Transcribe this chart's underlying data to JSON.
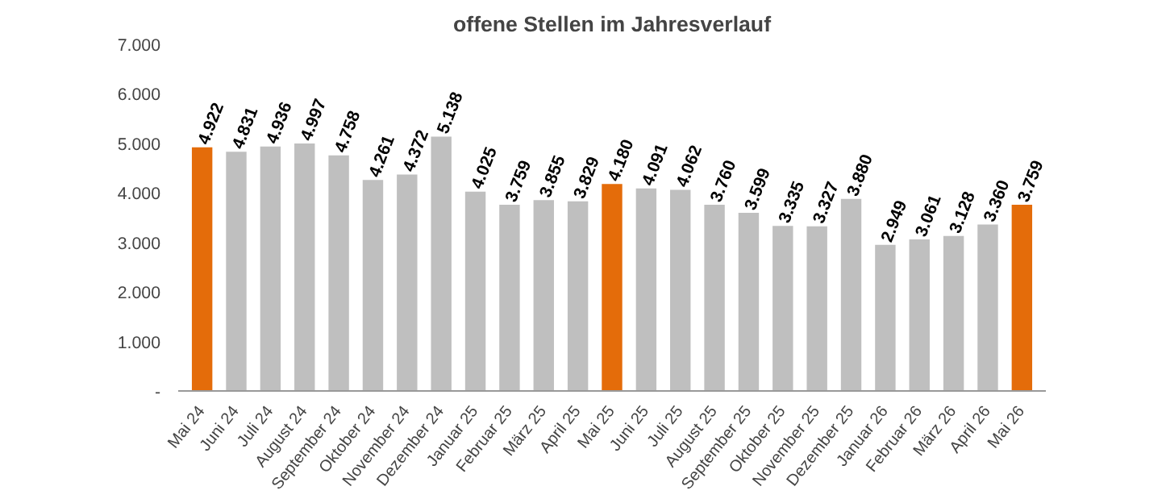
{
  "chart_data": {
    "type": "bar",
    "title": "offene Stellen im Jahresverlauf",
    "categories": [
      "Mai 24",
      "Juni 24",
      "Juli 24",
      "August 24",
      "September 24",
      "Oktober 24",
      "November 24",
      "Dezember 24",
      "Januar 25",
      "Februar 25",
      "März 25",
      "April 25",
      "Mai 25",
      "Juni 25",
      "Juli 25",
      "August 25",
      "September 25",
      "Oktober 25",
      "November 25",
      "Dezember 25",
      "Januar 26",
      "Februar 26",
      "März 26",
      "April 26",
      "Mai 26"
    ],
    "values": [
      4922,
      4831,
      4936,
      4997,
      4758,
      4261,
      4372,
      5138,
      4025,
      3759,
      3855,
      3829,
      4180,
      4091,
      4062,
      3760,
      3599,
      3335,
      3327,
      3880,
      2949,
      3061,
      3128,
      3360,
      3759
    ],
    "value_labels": [
      "4.922",
      "4.831",
      "4.936",
      "4.997",
      "4.758",
      "4.261",
      "4.372",
      "5.138",
      "4.025",
      "3.759",
      "3.855",
      "3.829",
      "4.180",
      "4.091",
      "4.062",
      "3.760",
      "3.599",
      "3.335",
      "3.327",
      "3.880",
      "2.949",
      "3.061",
      "3.128",
      "3.360",
      "3.759"
    ],
    "colors": [
      "#e46c0a",
      "#bfbfbf",
      "#bfbfbf",
      "#bfbfbf",
      "#bfbfbf",
      "#bfbfbf",
      "#bfbfbf",
      "#bfbfbf",
      "#bfbfbf",
      "#bfbfbf",
      "#bfbfbf",
      "#bfbfbf",
      "#e46c0a",
      "#bfbfbf",
      "#bfbfbf",
      "#bfbfbf",
      "#bfbfbf",
      "#bfbfbf",
      "#bfbfbf",
      "#bfbfbf",
      "#bfbfbf",
      "#bfbfbf",
      "#bfbfbf",
      "#bfbfbf",
      "#e46c0a"
    ],
    "ylim": [
      0,
      7000
    ],
    "yticks": [
      {
        "value": 0,
        "label": "-"
      },
      {
        "value": 1000,
        "label": "1.000"
      },
      {
        "value": 2000,
        "label": "2.000"
      },
      {
        "value": 3000,
        "label": "3.000"
      },
      {
        "value": 4000,
        "label": "4.000"
      },
      {
        "value": 5000,
        "label": "5.000"
      },
      {
        "value": 6000,
        "label": "6.000"
      },
      {
        "value": 7000,
        "label": "7.000"
      }
    ],
    "grid": false
  }
}
